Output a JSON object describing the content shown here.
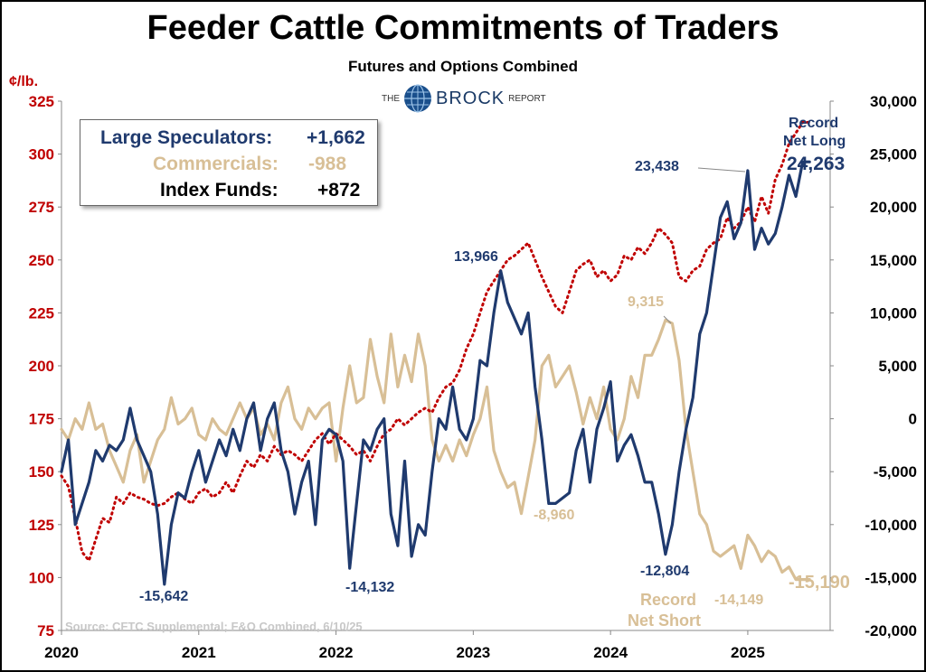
{
  "title": "Feeder Cattle Commitments of Traders",
  "subtitle": "Futures and Options Combined",
  "logo": {
    "the": "THE",
    "brock": "BROCK",
    "report": "REPORT"
  },
  "left_axis_unit": "¢/lb.",
  "source": "Source: CFTC Supplemental; F&O Combined, 6/10/25",
  "legend": {
    "large_spec_label": "Large Speculators:",
    "large_spec_value": "+1,662",
    "commercials_label": "Commercials:",
    "commercials_value": "-988",
    "index_label": "Index Funds:",
    "index_value": "+872"
  },
  "annotations": {
    "record_long_1": "Record",
    "record_long_2": "Net Long",
    "last_spec": "24,263",
    "peak_2025": "23,438",
    "peak_2023": "13,966",
    "comm_peak_2024": "9,315",
    "comm_low_2023": "-8,960",
    "spec_low_2024": "-12,804",
    "spec_low_2022": "-14,132",
    "spec_low_2020": "-15,642",
    "record_short_1": "Record",
    "record_short_2": "Net Short",
    "comm_low_2025": "-14,149",
    "last_comm": "-15,190"
  },
  "colors": {
    "spec": "#1f3a6e",
    "comm": "#d8bf96",
    "price": "#c00000",
    "index": "#000000"
  },
  "chart_data": {
    "type": "line",
    "x_ticks": [
      "2020",
      "2021",
      "2022",
      "2023",
      "2024",
      "2025"
    ],
    "xlim": [
      2020.0,
      2025.6
    ],
    "left_axis": {
      "label": "¢/lb.",
      "ylim": [
        75,
        325
      ],
      "ticks": [
        "325",
        "300",
        "275",
        "250",
        "225",
        "200",
        "175",
        "150",
        "125",
        "100",
        "75"
      ]
    },
    "right_axis": {
      "ylim": [
        -20000,
        30000
      ],
      "ticks": [
        "30,000",
        "25,000",
        "20,000",
        "15,000",
        "10,000",
        "5,000",
        "0",
        "-5,000",
        "-10,000",
        "-15,000",
        "-20,000"
      ]
    },
    "grid": false,
    "series": [
      {
        "name": "Large Speculators",
        "axis": "right",
        "style": "solid",
        "x": [
          2020.0,
          2020.05,
          2020.1,
          2020.15,
          2020.2,
          2020.25,
          2020.3,
          2020.35,
          2020.4,
          2020.45,
          2020.5,
          2020.55,
          2020.6,
          2020.65,
          2020.7,
          2020.75,
          2020.8,
          2020.85,
          2020.9,
          2020.95,
          2021.0,
          2021.05,
          2021.1,
          2021.15,
          2021.2,
          2021.25,
          2021.3,
          2021.35,
          2021.4,
          2021.45,
          2021.5,
          2021.55,
          2021.6,
          2021.65,
          2021.7,
          2021.75,
          2021.8,
          2021.85,
          2021.9,
          2021.95,
          2022.0,
          2022.05,
          2022.1,
          2022.15,
          2022.2,
          2022.25,
          2022.3,
          2022.35,
          2022.4,
          2022.45,
          2022.5,
          2022.55,
          2022.6,
          2022.65,
          2022.7,
          2022.75,
          2022.8,
          2022.85,
          2022.9,
          2022.95,
          2023.0,
          2023.05,
          2023.1,
          2023.15,
          2023.2,
          2023.25,
          2023.3,
          2023.35,
          2023.4,
          2023.45,
          2023.5,
          2023.55,
          2023.6,
          2023.65,
          2023.7,
          2023.75,
          2023.8,
          2023.85,
          2023.9,
          2023.95,
          2024.0,
          2024.05,
          2024.1,
          2024.15,
          2024.2,
          2024.25,
          2024.3,
          2024.35,
          2024.4,
          2024.45,
          2024.5,
          2024.55,
          2024.6,
          2024.65,
          2024.7,
          2024.75,
          2024.8,
          2024.85,
          2024.9,
          2024.95,
          2025.0,
          2025.05,
          2025.1,
          2025.15,
          2025.2,
          2025.25,
          2025.3,
          2025.35,
          2025.4,
          2025.45
        ],
        "y": [
          -5000,
          -2000,
          -10000,
          -8000,
          -6000,
          -3000,
          -4000,
          -2500,
          -3000,
          -2000,
          1000,
          -2000,
          -3500,
          -5000,
          -9000,
          -15642,
          -10000,
          -7000,
          -7500,
          -5000,
          -3000,
          -6000,
          -4000,
          -2000,
          -3500,
          -1000,
          -3000,
          0,
          1500,
          -3000,
          0,
          1500,
          -3000,
          -5000,
          -9000,
          -6000,
          -4000,
          -10000,
          -2000,
          -1000,
          -1500,
          -4000,
          -14132,
          -8000,
          -2000,
          -3000,
          -1000,
          0,
          -9000,
          -12000,
          -4000,
          -13000,
          -10000,
          -11000,
          -5000,
          0,
          -1000,
          3000,
          -1000,
          -2000,
          0,
          5500,
          5000,
          10000,
          13966,
          11000,
          9500,
          8000,
          10000,
          3000,
          -2000,
          -8000,
          -8000,
          -7500,
          -7000,
          -3000,
          -1000,
          -6000,
          -1000,
          1000,
          3500,
          -4000,
          -2500,
          -1500,
          -3500,
          -6000,
          -6000,
          -9000,
          -12804,
          -10000,
          -5000,
          -1000,
          2000,
          8000,
          10000,
          14500,
          19000,
          20500,
          17000,
          18500,
          23438,
          16000,
          18000,
          16500,
          17500,
          20000,
          23000,
          21000,
          24263,
          24263
        ]
      },
      {
        "name": "Commercials",
        "axis": "right",
        "style": "solid",
        "x": [
          2020.0,
          2020.05,
          2020.1,
          2020.15,
          2020.2,
          2020.25,
          2020.3,
          2020.35,
          2020.4,
          2020.45,
          2020.5,
          2020.55,
          2020.6,
          2020.65,
          2020.7,
          2020.75,
          2020.8,
          2020.85,
          2020.9,
          2020.95,
          2021.0,
          2021.05,
          2021.1,
          2021.15,
          2021.2,
          2021.25,
          2021.3,
          2021.35,
          2021.4,
          2021.45,
          2021.5,
          2021.55,
          2021.6,
          2021.65,
          2021.7,
          2021.75,
          2021.8,
          2021.85,
          2021.9,
          2021.95,
          2022.0,
          2022.05,
          2022.1,
          2022.15,
          2022.2,
          2022.25,
          2022.3,
          2022.35,
          2022.4,
          2022.45,
          2022.5,
          2022.55,
          2022.6,
          2022.65,
          2022.7,
          2022.75,
          2022.8,
          2022.85,
          2022.9,
          2022.95,
          2023.0,
          2023.05,
          2023.1,
          2023.15,
          2023.2,
          2023.25,
          2023.3,
          2023.35,
          2023.4,
          2023.45,
          2023.5,
          2023.55,
          2023.6,
          2023.65,
          2023.7,
          2023.75,
          2023.8,
          2023.85,
          2023.9,
          2023.95,
          2024.0,
          2024.05,
          2024.1,
          2024.15,
          2024.2,
          2024.25,
          2024.3,
          2024.35,
          2024.4,
          2024.45,
          2024.5,
          2024.55,
          2024.6,
          2024.65,
          2024.7,
          2024.75,
          2024.8,
          2024.85,
          2024.9,
          2024.95,
          2025.0,
          2025.05,
          2025.1,
          2025.15,
          2025.2,
          2025.25,
          2025.3,
          2025.35,
          2025.4,
          2025.45
        ],
        "y": [
          -1000,
          -2000,
          0,
          -1000,
          1500,
          -1000,
          -500,
          -3000,
          -4500,
          -6000,
          -3000,
          -1500,
          -6000,
          -4000,
          -2000,
          -1000,
          2000,
          -500,
          0,
          1000,
          -1500,
          -2000,
          0,
          -1000,
          -1500,
          0,
          1500,
          0,
          1000,
          -1500,
          -500,
          -2000,
          1500,
          3000,
          0,
          -1000,
          1000,
          0,
          1000,
          1500,
          -4000,
          1000,
          5000,
          1500,
          2000,
          7500,
          4000,
          1500,
          8000,
          3000,
          6000,
          3500,
          8000,
          5000,
          -2000,
          -4000,
          -2500,
          -4000,
          -2000,
          -3500,
          -1500,
          0,
          3000,
          -3000,
          -5000,
          -6500,
          -6000,
          -8960,
          -5500,
          -2000,
          5000,
          6000,
          3000,
          4000,
          5000,
          2500,
          -500,
          2000,
          0,
          3000,
          -1000,
          -2000,
          0,
          4000,
          2000,
          6000,
          6000,
          7500,
          9315,
          9000,
          5500,
          -1000,
          -5000,
          -9000,
          -10000,
          -12500,
          -13000,
          -12500,
          -12000,
          -14149,
          -11000,
          -12000,
          -13500,
          -12500,
          -13000,
          -14500,
          -14000,
          -15190,
          -15190,
          -15190
        ]
      },
      {
        "name": "Price",
        "axis": "left",
        "style": "dotted",
        "x": [
          2020.0,
          2020.05,
          2020.1,
          2020.15,
          2020.2,
          2020.25,
          2020.3,
          2020.35,
          2020.4,
          2020.45,
          2020.5,
          2020.55,
          2020.6,
          2020.65,
          2020.7,
          2020.75,
          2020.8,
          2020.85,
          2020.9,
          2020.95,
          2021.0,
          2021.05,
          2021.1,
          2021.15,
          2021.2,
          2021.25,
          2021.3,
          2021.35,
          2021.4,
          2021.45,
          2021.5,
          2021.55,
          2021.6,
          2021.65,
          2021.7,
          2021.75,
          2021.8,
          2021.85,
          2021.9,
          2021.95,
          2022.0,
          2022.05,
          2022.1,
          2022.15,
          2022.2,
          2022.25,
          2022.3,
          2022.35,
          2022.4,
          2022.45,
          2022.5,
          2022.55,
          2022.6,
          2022.65,
          2022.7,
          2022.75,
          2022.8,
          2022.85,
          2022.9,
          2022.95,
          2023.0,
          2023.05,
          2023.1,
          2023.15,
          2023.2,
          2023.25,
          2023.3,
          2023.35,
          2023.4,
          2023.45,
          2023.5,
          2023.55,
          2023.6,
          2023.65,
          2023.7,
          2023.75,
          2023.8,
          2023.85,
          2023.9,
          2023.95,
          2024.0,
          2024.05,
          2024.1,
          2024.15,
          2024.2,
          2024.25,
          2024.3,
          2024.35,
          2024.4,
          2024.45,
          2024.5,
          2024.55,
          2024.6,
          2024.65,
          2024.7,
          2024.75,
          2024.8,
          2024.85,
          2024.9,
          2024.95,
          2025.0,
          2025.05,
          2025.1,
          2025.15,
          2025.2,
          2025.25,
          2025.3,
          2025.35,
          2025.4,
          2025.45
        ],
        "y": [
          148,
          143,
          128,
          112,
          108,
          118,
          128,
          126,
          138,
          135,
          140,
          138,
          137,
          135,
          134,
          135,
          138,
          140,
          137,
          135,
          140,
          142,
          138,
          140,
          145,
          140,
          148,
          155,
          152,
          158,
          155,
          162,
          158,
          160,
          158,
          155,
          160,
          165,
          168,
          163,
          168,
          165,
          162,
          158,
          160,
          155,
          162,
          168,
          170,
          175,
          172,
          175,
          178,
          180,
          178,
          185,
          190,
          192,
          198,
          208,
          215,
          225,
          235,
          240,
          245,
          250,
          252,
          255,
          258,
          250,
          242,
          235,
          228,
          225,
          235,
          245,
          248,
          250,
          242,
          245,
          240,
          243,
          252,
          250,
          256,
          253,
          258,
          265,
          262,
          258,
          242,
          240,
          245,
          247,
          255,
          258,
          260,
          270,
          265,
          268,
          275,
          268,
          280,
          272,
          288,
          295,
          305,
          310,
          315,
          315
        ]
      }
    ]
  }
}
